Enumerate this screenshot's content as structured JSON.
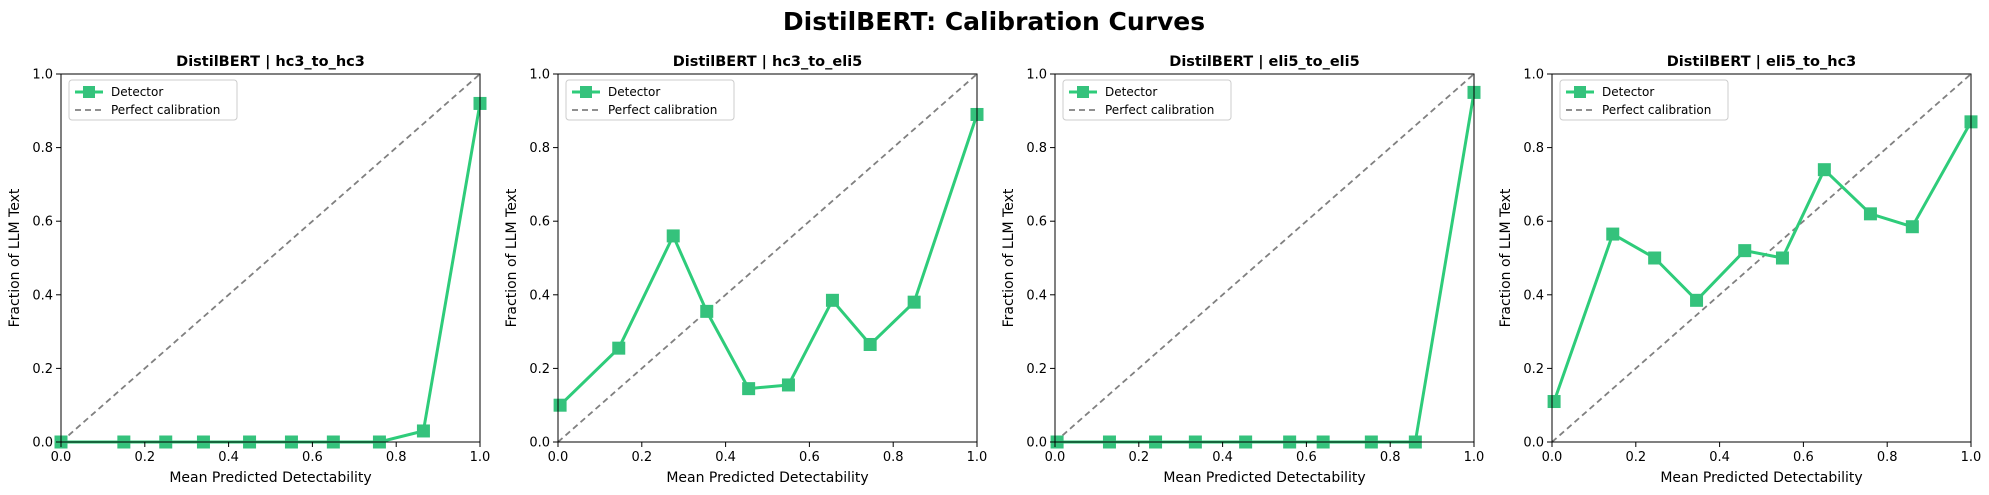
{
  "figure_title": "DistilBERT: Calibration Curves",
  "colors": {
    "detector": "#2ecc7a",
    "detector_marker": "#35c27c",
    "perfect": "#808080",
    "axis": "#000000"
  },
  "chart_data": [
    {
      "type": "line",
      "title": "DistilBERT | hc3_to_hc3",
      "xlabel": "Mean Predicted Detectability",
      "ylabel": "Fraction of LLM Text",
      "xlim": [
        0,
        1
      ],
      "ylim": [
        0,
        1
      ],
      "xticks": [
        "0.0",
        "0.2",
        "0.4",
        "0.6",
        "0.8",
        "1.0"
      ],
      "yticks": [
        "0.0",
        "0.2",
        "0.4",
        "0.6",
        "0.8",
        "1.0"
      ],
      "grid": false,
      "legend": {
        "position": "top-left",
        "entries": [
          "Detector",
          "Perfect calibration"
        ]
      },
      "series": [
        {
          "name": "Detector",
          "marker": "square",
          "x": [
            0.0,
            0.15,
            0.25,
            0.34,
            0.45,
            0.55,
            0.65,
            0.76,
            0.865,
            1.0
          ],
          "y": [
            0.0,
            0.0,
            0.0,
            0.0,
            0.0,
            0.0,
            0.0,
            0.0,
            0.03,
            0.92
          ]
        },
        {
          "name": "Perfect calibration",
          "style": "dashed",
          "x": [
            0,
            1
          ],
          "y": [
            0,
            1
          ]
        }
      ]
    },
    {
      "type": "line",
      "title": "DistilBERT | hc3_to_eli5",
      "xlabel": "Mean Predicted Detectability",
      "ylabel": "Fraction of LLM Text",
      "xlim": [
        0,
        1
      ],
      "ylim": [
        0,
        1
      ],
      "xticks": [
        "0.0",
        "0.2",
        "0.4",
        "0.6",
        "0.8",
        "1.0"
      ],
      "yticks": [
        "0.0",
        "0.2",
        "0.4",
        "0.6",
        "0.8",
        "1.0"
      ],
      "grid": false,
      "legend": {
        "position": "top-left",
        "entries": [
          "Detector",
          "Perfect calibration"
        ]
      },
      "series": [
        {
          "name": "Detector",
          "marker": "square",
          "x": [
            0.005,
            0.145,
            0.275,
            0.355,
            0.455,
            0.55,
            0.655,
            0.745,
            0.85,
            1.0
          ],
          "y": [
            0.1,
            0.255,
            0.56,
            0.355,
            0.145,
            0.155,
            0.385,
            0.265,
            0.38,
            0.89
          ]
        },
        {
          "name": "Perfect calibration",
          "style": "dashed",
          "x": [
            0,
            1
          ],
          "y": [
            0,
            1
          ]
        }
      ]
    },
    {
      "type": "line",
      "title": "DistilBERT | eli5_to_eli5",
      "xlabel": "Mean Predicted Detectability",
      "ylabel": "Fraction of LLM Text",
      "xlim": [
        0,
        1
      ],
      "ylim": [
        0,
        1
      ],
      "xticks": [
        "0.0",
        "0.2",
        "0.4",
        "0.6",
        "0.8",
        "1.0"
      ],
      "yticks": [
        "0.0",
        "0.2",
        "0.4",
        "0.6",
        "0.8",
        "1.0"
      ],
      "grid": false,
      "legend": {
        "position": "top-left",
        "entries": [
          "Detector",
          "Perfect calibration"
        ]
      },
      "series": [
        {
          "name": "Detector",
          "marker": "square",
          "x": [
            0.005,
            0.13,
            0.24,
            0.335,
            0.455,
            0.56,
            0.64,
            0.755,
            0.86,
            1.0
          ],
          "y": [
            0.0,
            0.0,
            0.0,
            0.0,
            0.0,
            0.0,
            0.0,
            0.0,
            0.0,
            0.95
          ]
        },
        {
          "name": "Perfect calibration",
          "style": "dashed",
          "x": [
            0,
            1
          ],
          "y": [
            0,
            1
          ]
        }
      ]
    },
    {
      "type": "line",
      "title": "DistilBERT | eli5_to_hc3",
      "xlabel": "Mean Predicted Detectability",
      "ylabel": "Fraction of LLM Text",
      "xlim": [
        0,
        1
      ],
      "ylim": [
        0,
        1
      ],
      "xticks": [
        "0.0",
        "0.2",
        "0.4",
        "0.6",
        "0.8",
        "1.0"
      ],
      "yticks": [
        "0.0",
        "0.2",
        "0.4",
        "0.6",
        "0.8",
        "1.0"
      ],
      "grid": false,
      "legend": {
        "position": "top-left",
        "entries": [
          "Detector",
          "Perfect calibration"
        ]
      },
      "series": [
        {
          "name": "Detector",
          "marker": "square",
          "x": [
            0.005,
            0.145,
            0.245,
            0.345,
            0.46,
            0.55,
            0.65,
            0.76,
            0.86,
            1.0
          ],
          "y": [
            0.11,
            0.565,
            0.5,
            0.385,
            0.52,
            0.5,
            0.74,
            0.62,
            0.585,
            0.87
          ]
        },
        {
          "name": "Perfect calibration",
          "style": "dashed",
          "x": [
            0,
            1
          ],
          "y": [
            0,
            1
          ]
        }
      ]
    }
  ]
}
